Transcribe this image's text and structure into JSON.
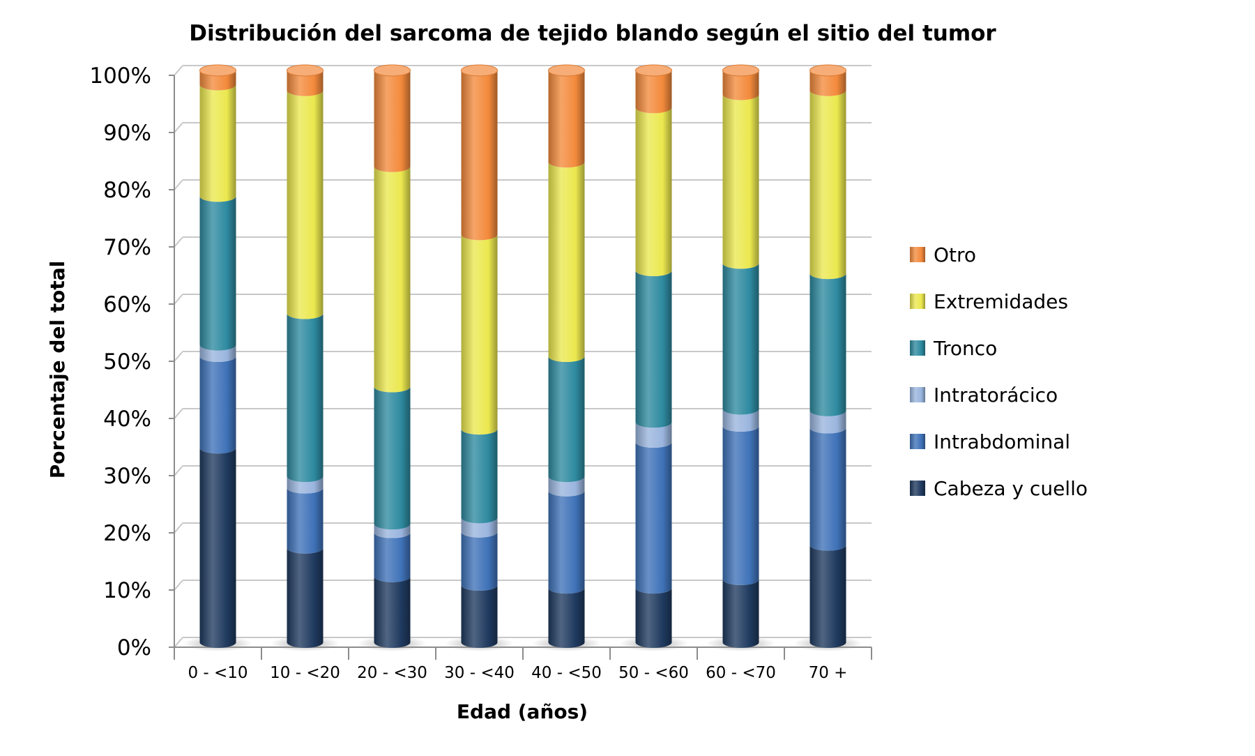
{
  "chart_data": {
    "type": "bar",
    "stacked": true,
    "style": "3d-cylinder",
    "title": "Distribución del sarcoma de tejido blando según el sitio del tumor",
    "xlabel": "Edad (años)",
    "ylabel": "Porcentaje del total",
    "ylim": [
      0,
      100
    ],
    "yticks": [
      "0%",
      "10%",
      "20%",
      "30%",
      "40%",
      "50%",
      "60%",
      "70%",
      "80%",
      "90%",
      "100%"
    ],
    "grid": true,
    "legend_position": "right",
    "categories": [
      "0 - <10",
      "10 - <20",
      "20 - <30",
      "30 - <40",
      "40 - <50",
      "50 - <60",
      "60 - <70",
      "70 +"
    ],
    "series": [
      {
        "name": "Cabeza y cuello",
        "color": "#1f3a5f",
        "values": [
          34,
          16.5,
          11.5,
          10,
          9.5,
          9.5,
          11,
          17
        ]
      },
      {
        "name": "Intrabdominal",
        "color": "#3f72b8",
        "values": [
          16,
          10.5,
          7.7,
          9.3,
          17,
          25.5,
          26.8,
          20.5
        ]
      },
      {
        "name": "Intratorácico",
        "color": "#9ab5de",
        "values": [
          2,
          2,
          1.5,
          2.5,
          2.5,
          3.5,
          3,
          3
        ]
      },
      {
        "name": "Tronco",
        "color": "#2e8aa0",
        "values": [
          26,
          28.5,
          24,
          15.5,
          21,
          26.5,
          25.5,
          24
        ]
      },
      {
        "name": "Extremidades",
        "color": "#ebe84f",
        "values": [
          19.5,
          39,
          38.5,
          34,
          34,
          28.5,
          29.5,
          32
        ]
      },
      {
        "name": "Otro",
        "color": "#f38a3c",
        "values": [
          2.5,
          3.5,
          16.8,
          28.7,
          16,
          6.5,
          4.2,
          3.5
        ]
      }
    ]
  }
}
